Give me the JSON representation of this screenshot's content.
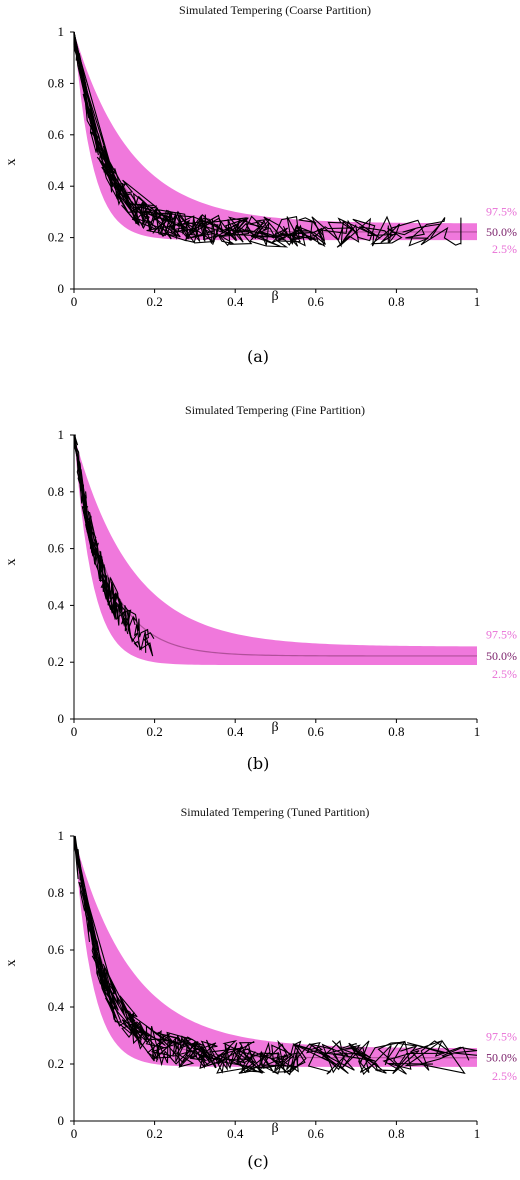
{
  "colors": {
    "band": "#f078dc",
    "median": "#b0509a",
    "traces": "#000000",
    "label_outer": "#e86fd6",
    "label_median": "#7a1f6a"
  },
  "chart_data": [
    {
      "type": "line",
      "panel_label": "(a)",
      "title": "Simulated Tempering (Coarse Partition)",
      "xlabel": "β",
      "ylabel": "x",
      "xlim": [
        0,
        1
      ],
      "ylim": [
        0,
        1
      ],
      "xticks": [
        "0",
        "0.2",
        "0.4",
        "0.6",
        "0.8",
        "1"
      ],
      "yticks": [
        "0",
        "0.2",
        "0.4",
        "0.6",
        "0.8",
        "1"
      ],
      "band_labels": [
        "97.5%",
        "50.0%",
        "2.5%"
      ],
      "grid": false,
      "quantile_band": {
        "upper_97_5": 0.255,
        "median_50": 0.222,
        "lower_2_5": 0.19,
        "decay": 12
      },
      "traces": {
        "count": 8,
        "beta_max": [
          0.96,
          0.92,
          0.78,
          0.62,
          0.55,
          0.4,
          0.3,
          0.25
        ],
        "seed": 11
      }
    },
    {
      "type": "line",
      "panel_label": "(b)",
      "title": "Simulated Tempering (Fine Partition)",
      "xlabel": "β",
      "ylabel": "x",
      "xlim": [
        0,
        1
      ],
      "ylim": [
        0,
        1
      ],
      "xticks": [
        "0",
        "0.2",
        "0.4",
        "0.6",
        "0.8",
        "1"
      ],
      "yticks": [
        "0",
        "0.2",
        "0.4",
        "0.6",
        "0.8",
        "1"
      ],
      "band_labels": [
        "97.5%",
        "50.0%",
        "2.5%"
      ],
      "grid": false,
      "quantile_band": {
        "upper_97_5": 0.255,
        "median_50": 0.222,
        "lower_2_5": 0.19,
        "decay": 12
      },
      "traces": {
        "count": 8,
        "beta_max": [
          0.2,
          0.19,
          0.18,
          0.16,
          0.14,
          0.12,
          0.1,
          0.08
        ],
        "seed": 23
      }
    },
    {
      "type": "line",
      "panel_label": "(c)",
      "title": "Simulated Tempering (Tuned Partition)",
      "xlabel": "β",
      "ylabel": "x",
      "xlim": [
        0,
        1
      ],
      "ylim": [
        0,
        1
      ],
      "xticks": [
        "0",
        "0.2",
        "0.4",
        "0.6",
        "0.8",
        "1"
      ],
      "yticks": [
        "0",
        "0.2",
        "0.4",
        "0.6",
        "0.8",
        "1"
      ],
      "band_labels": [
        "97.5%",
        "50.0%",
        "2.5%"
      ],
      "grid": false,
      "quantile_band": {
        "upper_97_5": 0.255,
        "median_50": 0.222,
        "lower_2_5": 0.19,
        "decay": 12
      },
      "traces": {
        "count": 8,
        "beta_max": [
          1.0,
          0.98,
          0.85,
          0.7,
          0.56,
          0.45,
          0.3,
          0.08
        ],
        "seed": 37
      }
    }
  ]
}
